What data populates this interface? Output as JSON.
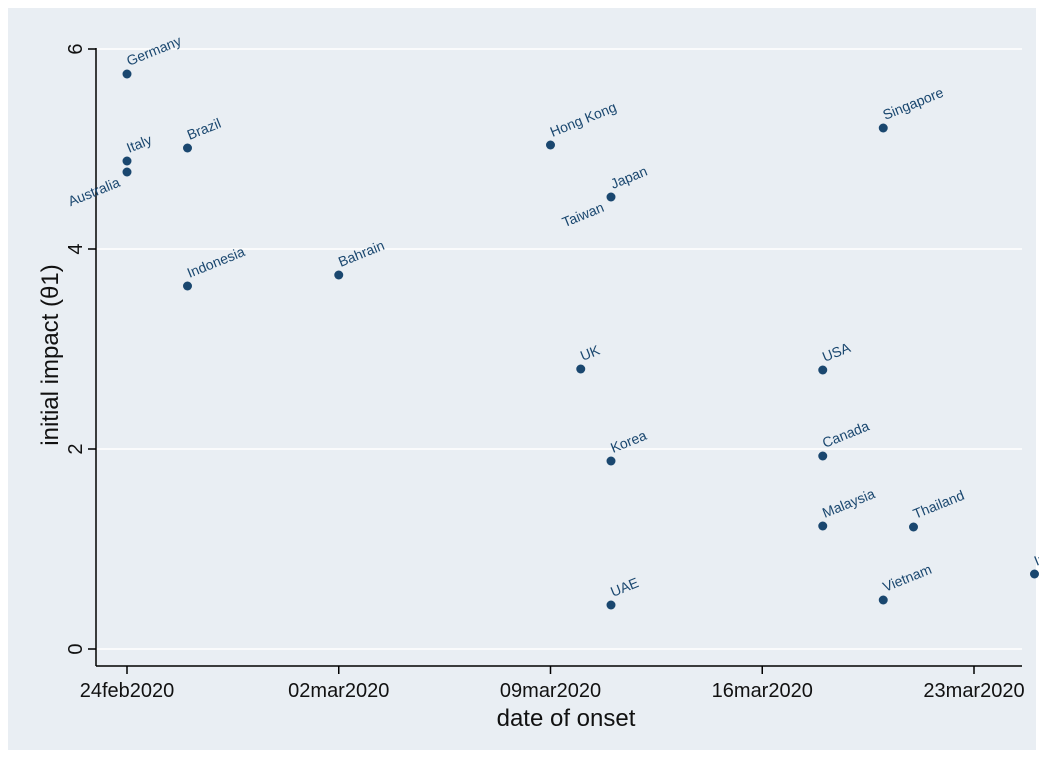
{
  "chart_data": {
    "type": "scatter",
    "title": "",
    "xlabel": "date of onset",
    "ylabel": "initial impact (θ1)",
    "x_type": "date",
    "xlim": [
      "2020-02-24",
      "2020-03-25"
    ],
    "ylim": [
      0,
      6
    ],
    "x_ticks": [
      "2020-02-24",
      "2020-03-02",
      "2020-03-09",
      "2020-03-16",
      "2020-03-23"
    ],
    "x_tick_labels": [
      "24feb2020",
      "02mar2020",
      "09mar2020",
      "16mar2020",
      "23mar2020"
    ],
    "y_ticks": [
      0,
      2,
      4,
      6
    ],
    "y_tick_labels": [
      "0",
      "2",
      "4",
      "6"
    ],
    "grid": true,
    "legend": "none",
    "colors": {
      "plot_background": "#e9eef3",
      "outer_background": "#ffffff",
      "marker": "#1a476f",
      "label": "#1a476f",
      "grid": "#ffffff",
      "axis": "#000000"
    },
    "points": [
      {
        "label": "Germany",
        "x": "2020-02-24",
        "y": 5.75,
        "label_pos": "upper-right"
      },
      {
        "label": "Italy",
        "x": "2020-02-24",
        "y": 4.88,
        "label_pos": "upper-right"
      },
      {
        "label": "Australia",
        "x": "2020-02-24",
        "y": 4.77,
        "label_pos": "lower-left"
      },
      {
        "label": "Brazil",
        "x": "2020-02-26",
        "y": 5.01,
        "label_pos": "upper-right"
      },
      {
        "label": "Indonesia",
        "x": "2020-02-26",
        "y": 3.63,
        "label_pos": "upper-right"
      },
      {
        "label": "Bahrain",
        "x": "2020-03-02",
        "y": 3.74,
        "label_pos": "upper-right"
      },
      {
        "label": "Hong Kong",
        "x": "2020-03-09",
        "y": 5.04,
        "label_pos": "upper-right"
      },
      {
        "label": "Japan",
        "x": "2020-03-11",
        "y": 4.52,
        "label_pos": "upper-right"
      },
      {
        "label": "Taiwan",
        "x": "2020-03-11",
        "y": 4.52,
        "label_pos": "lower-left"
      },
      {
        "label": "UK",
        "x": "2020-03-10",
        "y": 2.8,
        "label_pos": "upper-right"
      },
      {
        "label": "Korea",
        "x": "2020-03-11",
        "y": 1.88,
        "label_pos": "upper-right"
      },
      {
        "label": "UAE",
        "x": "2020-03-11",
        "y": 0.44,
        "label_pos": "upper-right"
      },
      {
        "label": "Singapore",
        "x": "2020-03-20",
        "y": 5.21,
        "label_pos": "upper-right"
      },
      {
        "label": "USA",
        "x": "2020-03-18",
        "y": 2.79,
        "label_pos": "upper-right"
      },
      {
        "label": "Canada",
        "x": "2020-03-18",
        "y": 1.93,
        "label_pos": "upper-right"
      },
      {
        "label": "Malaysia",
        "x": "2020-03-18",
        "y": 1.23,
        "label_pos": "upper-right"
      },
      {
        "label": "Thailand",
        "x": "2020-03-21",
        "y": 1.22,
        "label_pos": "upper-right"
      },
      {
        "label": "Vietnam",
        "x": "2020-03-20",
        "y": 0.49,
        "label_pos": "upper-right"
      },
      {
        "label": "India",
        "x": "2020-03-25",
        "y": 0.75,
        "label_pos": "upper-right"
      }
    ]
  }
}
